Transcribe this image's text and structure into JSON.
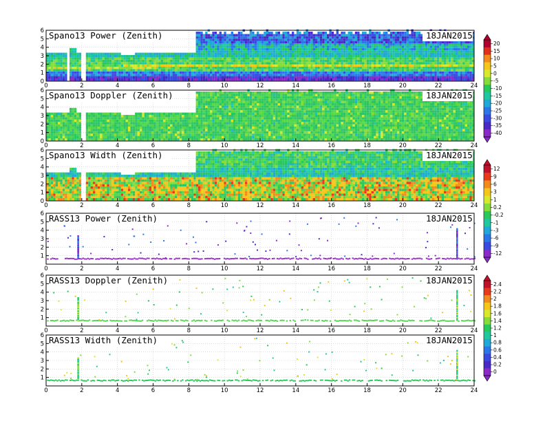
{
  "chart_data": {
    "type": "heatmap",
    "date": "18JAN2015",
    "x_ticks": [
      "0",
      "2",
      "4",
      "6",
      "8",
      "10",
      "12",
      "14",
      "16",
      "18",
      "20",
      "22",
      "24"
    ],
    "panels": [
      {
        "title": "Spano13 Power (Zenith)",
        "y_ticks": [
          "0",
          "1",
          "2",
          "3",
          "4",
          "5",
          "6"
        ],
        "kind": "power"
      },
      {
        "title": "Spano13 Doppler (Zenith)",
        "y_ticks": [
          "0",
          "1",
          "2",
          "3",
          "4",
          "5",
          "6"
        ],
        "kind": "doppler"
      },
      {
        "title": "Spano13 Width (Zenith)",
        "y_ticks": [
          "0",
          "1",
          "2",
          "3",
          "4",
          "5",
          "6"
        ],
        "kind": "width"
      },
      {
        "title": "RASS13 Power (Zenith)",
        "y_ticks": [
          "1",
          "2",
          "3",
          "4",
          "5",
          "6"
        ],
        "kind": "rpower"
      },
      {
        "title": "RASS13 Doppler (Zenith)",
        "y_ticks": [
          "1",
          "2",
          "3",
          "4",
          "5",
          "6"
        ],
        "kind": "rdoppler"
      },
      {
        "title": "RASS13 Width (Zenith)",
        "y_ticks": [
          "1",
          "2",
          "3",
          "4",
          "5",
          "6"
        ],
        "kind": "rwidth"
      }
    ],
    "colorbars": [
      {
        "labels": [
          "20",
          "15",
          "10",
          "5",
          "0",
          "-5",
          "-10",
          "-15",
          "-20",
          "-25",
          "-30",
          "-35",
          "-40"
        ],
        "colors": [
          "#b00030",
          "#e0301c",
          "#f28a1c",
          "#f5c61a",
          "#d8e82a",
          "#86dc3a",
          "#28c85a",
          "#20c8a0",
          "#20a8d8",
          "#2a78e8",
          "#3a4ae0",
          "#4a28c8",
          "#8a2ac8"
        ]
      },
      {
        "labels": [
          "12",
          "9",
          "6",
          "3",
          "1",
          "0.2",
          "-0.2",
          "-1",
          "-3",
          "-6",
          "-9",
          "-12"
        ],
        "colors": [
          "#c0102a",
          "#e83a1a",
          "#f28a1c",
          "#f5c61a",
          "#d8e82a",
          "#86dc3a",
          "#28c85a",
          "#20c8a0",
          "#20a8d8",
          "#2a78e8",
          "#3a4ae0",
          "#8a2ac8"
        ]
      },
      {
        "labels": [
          "2.4",
          "2.2",
          "2",
          "1.8",
          "1.6",
          "1.4",
          "1.2",
          "1",
          "0.8",
          "0.6",
          "0.4",
          "0.2",
          "0"
        ],
        "colors": [
          "#c0102a",
          "#e83a1a",
          "#f28a1c",
          "#f5c61a",
          "#d8e82a",
          "#86dc3a",
          "#28c85a",
          "#20c8a0",
          "#20a8d8",
          "#2a78e8",
          "#3a4ae0",
          "#4a28c8",
          "#8a2ac8"
        ]
      }
    ]
  }
}
